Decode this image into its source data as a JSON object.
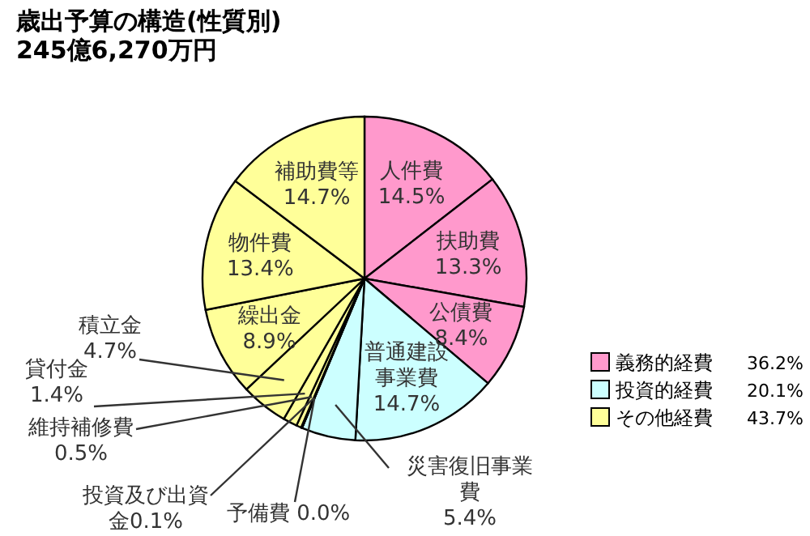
{
  "chart_data": {
    "type": "pie",
    "title": "歳出予算の構造(性質別)",
    "subtitle": "245億6,270万円",
    "categories": [
      "人件費",
      "扶助費",
      "公債費",
      "普通建設事業費",
      "災害復旧事業費",
      "予備費",
      "投資及び出資金",
      "維持補修費",
      "貸付金",
      "積立金",
      "繰出金",
      "物件費",
      "補助費等"
    ],
    "values": [
      14.5,
      13.3,
      8.4,
      14.7,
      5.4,
      0.0,
      0.1,
      0.5,
      1.4,
      4.7,
      8.9,
      13.4,
      14.7
    ],
    "value_labels": [
      "14.5%",
      "13.3%",
      "8.4%",
      "14.7%",
      "5.4%",
      "0.0%",
      "0.1%",
      "0.5%",
      "1.4%",
      "4.7%",
      "8.9%",
      "13.4%",
      "14.7%"
    ],
    "colors": [
      "#ff99cc",
      "#ff99cc",
      "#ff99cc",
      "#ccffff",
      "#ccffff",
      "#ffff99",
      "#ffff99",
      "#ffff99",
      "#ffff99",
      "#ffff99",
      "#ffff99",
      "#ffff99",
      "#ffff99"
    ],
    "annotations": [
      "義務的経費",
      "36.2%",
      "投資的経費",
      "20.1%",
      "その他経費",
      "43.7%"
    ]
  }
}
